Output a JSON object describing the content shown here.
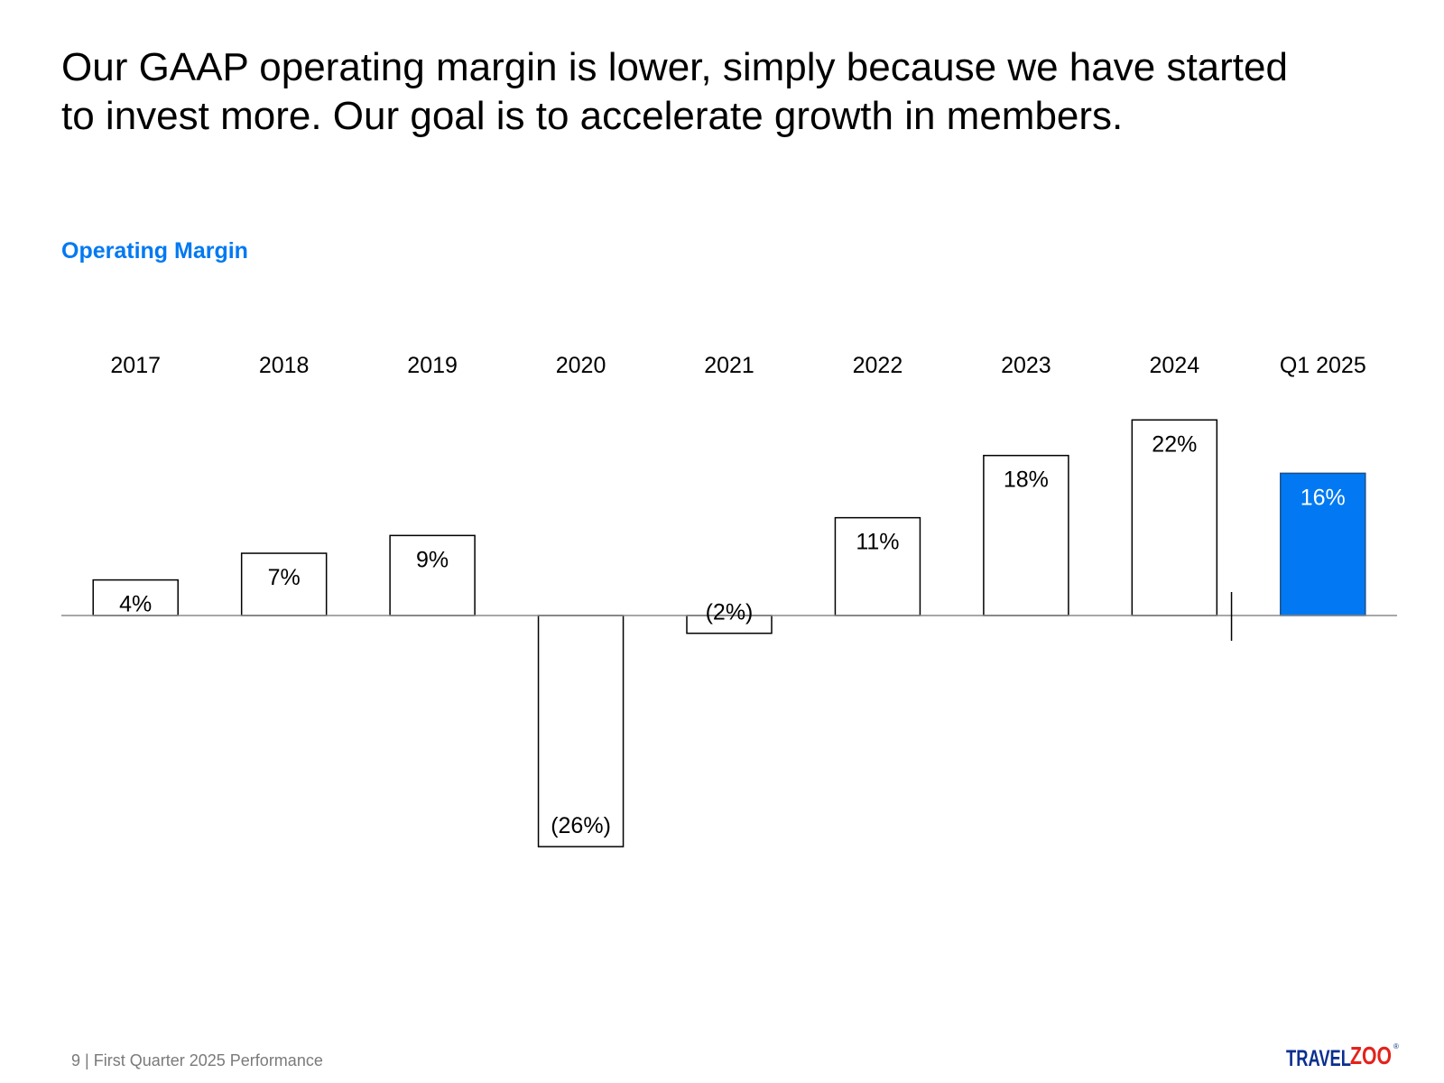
{
  "headline": {
    "line1": "Our GAAP operating margin is lower, simply because we have started",
    "line2": "to invest more. Our goal is to accelerate growth in members."
  },
  "footer": {
    "page_number": "9",
    "separator": "|",
    "text": "First Quarter 2025 Performance"
  },
  "logo": {
    "part1": "TRAVEL",
    "part2": "ZOO",
    "mark": "®"
  },
  "colors": {
    "accent": "#0279F2",
    "logo_red": "#E3231B",
    "logo_blue": "#0A2F8F",
    "axis": "#8c8c8c",
    "footer_text": "#7a7a7a"
  },
  "chart_data": {
    "type": "bar",
    "title": "Operating Margin",
    "categories": [
      "2017",
      "2018",
      "2019",
      "2020",
      "2021",
      "2022",
      "2023",
      "2024",
      "Q1 2025"
    ],
    "values": [
      4,
      7,
      9,
      -26,
      -2,
      11,
      18,
      22,
      16
    ],
    "labels": [
      "4%",
      "7%",
      "9%",
      "(26%)",
      "(2%)",
      "11%",
      "18%",
      "22%",
      "16%"
    ],
    "highlight_index": 8,
    "ylim": [
      -30,
      25
    ],
    "xlabel": "",
    "ylabel": "",
    "legend": "none",
    "grid": false
  }
}
